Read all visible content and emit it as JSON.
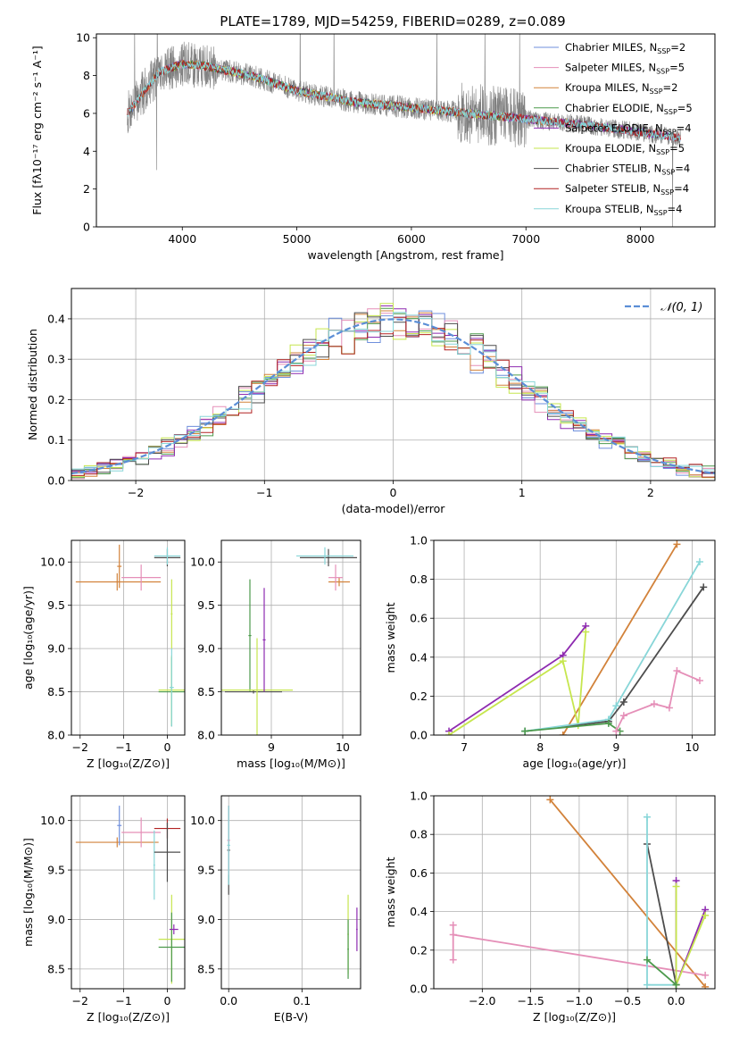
{
  "title": "PLATE=1789, MJD=54259, FIBERID=0289, z=0.089",
  "colors": {
    "Chabrier MILES": "#6f8fdc",
    "Salpeter MILES": "#e58fb8",
    "Kroupa MILES": "#d2823a",
    "Chabrier ELODIE": "#4c9a4c",
    "Salpeter ELODIE": "#8e2bb0",
    "Kroupa ELODIE": "#c6e64e",
    "Chabrier STELIB": "#4d4d4d",
    "Salpeter STELIB": "#b22222",
    "Kroupa STELIB": "#88d6d8",
    "data": "#808080",
    "normal": "#5b8ed6",
    "grid": "#b0b0b0"
  },
  "chart_data": [
    {
      "id": "spectrum",
      "type": "line",
      "xlabel": "wavelength [Angstrom, rest frame]",
      "ylabel": "Flux [fλ10⁻¹⁷ erg cm⁻² s⁻¹ A⁻¹]",
      "xlim": [
        3250,
        8650
      ],
      "ylim": [
        0,
        10.2
      ],
      "xticks": [
        4000,
        5000,
        6000,
        7000,
        8000
      ],
      "yticks": [
        0,
        2,
        4,
        6,
        8,
        10
      ],
      "grid": false,
      "legend_position": "top-right",
      "data_range": [
        3520,
        8350
      ],
      "continuum": [
        [
          3520,
          6.0
        ],
        [
          3800,
          8.2
        ],
        [
          4000,
          8.6
        ],
        [
          4200,
          8.5
        ],
        [
          4600,
          8.0
        ],
        [
          5000,
          7.2
        ],
        [
          5500,
          6.6
        ],
        [
          6000,
          6.3
        ],
        [
          6500,
          6.0
        ],
        [
          7000,
          5.7
        ],
        [
          7500,
          5.4
        ],
        [
          8000,
          5.0
        ],
        [
          8350,
          4.7
        ]
      ],
      "legend": [
        {
          "label": "Chabrier MILES, N",
          "sub": "SSP",
          "suffix": "=2"
        },
        {
          "label": "Salpeter MILES, N",
          "sub": "SSP",
          "suffix": "=5"
        },
        {
          "label": "Kroupa MILES, N",
          "sub": "SSP",
          "suffix": "=2"
        },
        {
          "label": "Chabrier ELODIE, N",
          "sub": "SSP",
          "suffix": "=5"
        },
        {
          "label": "Salpeter ELODIE, N",
          "sub": "SSP",
          "suffix": "=4"
        },
        {
          "label": "Kroupa ELODIE, N",
          "sub": "SSP",
          "suffix": "=5"
        },
        {
          "label": "Chabrier STELIB, N",
          "sub": "SSP",
          "suffix": "=4"
        },
        {
          "label": "Salpeter STELIB, N",
          "sub": "SSP",
          "suffix": "=4"
        },
        {
          "label": "Kroupa STELIB, N",
          "sub": "SSP",
          "suffix": "=4"
        }
      ],
      "model_ranges": {
        "Chabrier MILES": [
          3540,
          7400
        ],
        "Salpeter MILES": [
          3540,
          7400
        ],
        "Kroupa MILES": [
          3540,
          7400
        ],
        "Chabrier ELODIE": [
          3900,
          6800
        ],
        "Salpeter ELODIE": [
          3900,
          8350
        ],
        "Kroupa ELODIE": [
          3900,
          6800
        ],
        "Chabrier STELIB": [
          3520,
          8350
        ],
        "Salpeter STELIB": [
          3520,
          8350
        ],
        "Kroupa STELIB": [
          3520,
          8350
        ]
      }
    },
    {
      "id": "residuals",
      "type": "histogram",
      "xlabel": "(data-model)/error",
      "ylabel": "Normed distribution",
      "xlim": [
        -2.5,
        2.5
      ],
      "ylim": [
        0,
        0.475
      ],
      "xticks": [
        -2,
        -1,
        0,
        1,
        2
      ],
      "yticks": [
        0.0,
        0.1,
        0.2,
        0.3,
        0.4
      ],
      "grid": true,
      "legend": "𝒩(0, 1)",
      "legend_position": "top-right",
      "bins": [
        -2.5,
        2.5,
        50
      ]
    },
    {
      "id": "age-vs-Z",
      "type": "errorbar",
      "xlabel": "Z [log₁₀(Z/Z⊙)]",
      "ylabel": "age  [log₁₀(age/yr)]",
      "xlim": [
        -2.2,
        0.4
      ],
      "ylim": [
        8.0,
        10.25
      ],
      "xticks": [
        -2,
        -1,
        0
      ],
      "yticks": [
        8.0,
        8.5,
        9.0,
        9.5,
        10.0
      ],
      "grid": true,
      "points": [
        {
          "model": "Kroupa MILES",
          "x": -1.15,
          "xerr": [
            0.95,
            1.0
          ],
          "y": 9.77,
          "yerr": 0.1
        },
        {
          "model": "Kroupa MILES",
          "x": -1.1,
          "xerr": 0.05,
          "y": 9.95,
          "yerr": 0.25
        },
        {
          "model": "Salpeter MILES",
          "x": -0.6,
          "xerr": 0.45,
          "y": 9.82,
          "yerr": 0.15
        },
        {
          "model": "Chabrier STELIB",
          "x": 0.0,
          "xerr": 0.3,
          "y": 10.05,
          "yerr": 0.1
        },
        {
          "model": "Kroupa STELIB",
          "x": 0.0,
          "xerr": 0.3,
          "y": 10.07,
          "yerr": 0.1
        },
        {
          "model": "Kroupa ELODIE",
          "x": 0.1,
          "xerr": 0.02,
          "y": 9.4,
          "yerr": 0.4
        },
        {
          "model": "Chabrier ELODIE",
          "x": 0.1,
          "xerr": 0.3,
          "y": 8.5,
          "yerr": 0.4
        },
        {
          "model": "Kroupa ELODIE",
          "x": 0.1,
          "xerr": 0.3,
          "y": 8.52,
          "yerr": 0.4
        },
        {
          "model": "Kroupa STELIB",
          "x": 0.1,
          "xerr": 0.05,
          "y": 8.55,
          "yerr": 0.45
        }
      ]
    },
    {
      "id": "age-vs-mass",
      "type": "errorbar",
      "xlabel": "mass [log₁₀(M/M⊙)]",
      "ylabel": "",
      "xlim": [
        8.3,
        10.25
      ],
      "ylim": [
        8.0,
        10.25
      ],
      "xticks": [
        9,
        10
      ],
      "yticks": [
        8.0,
        8.5,
        9.0,
        9.5,
        10.0
      ],
      "grid": true,
      "points": [
        {
          "model": "Chabrier STELIB",
          "x": 9.8,
          "xerr": 0.4,
          "y": 10.05,
          "yerr": 0.1
        },
        {
          "model": "Kroupa STELIB",
          "x": 9.75,
          "xerr": 0.4,
          "y": 10.07,
          "yerr": 0.1
        },
        {
          "model": "Kroupa MILES",
          "x": 9.95,
          "xerr": 0.15,
          "y": 9.77,
          "yerr": 0.05
        },
        {
          "model": "Salpeter MILES",
          "x": 9.9,
          "xerr": 0.1,
          "y": 9.82,
          "yerr": 0.15
        },
        {
          "model": "Chabrier STELIB",
          "x": 8.75,
          "xerr": 0.4,
          "y": 8.5,
          "yerr": 0.02
        },
        {
          "model": "Chabrier ELODIE",
          "x": 8.7,
          "xerr": 0.02,
          "y": 9.15,
          "yerr": 0.65
        },
        {
          "model": "Kroupa ELODIE",
          "x": 8.8,
          "xerr": 0.5,
          "y": 8.52,
          "yerr": 0.6
        },
        {
          "model": "Salpeter ELODIE",
          "x": 8.9,
          "xerr": 0.02,
          "y": 9.1,
          "yerr": 0.6
        }
      ]
    },
    {
      "id": "weight-vs-age",
      "type": "line",
      "xlabel": "age  [log₁₀(age/yr)]",
      "ylabel": "mass weight",
      "xlim": [
        6.6,
        10.3
      ],
      "ylim": [
        0.0,
        1.0
      ],
      "xticks": [
        7,
        8,
        9,
        10
      ],
      "yticks": [
        0.0,
        0.2,
        0.4,
        0.6,
        0.8,
        1.0
      ],
      "grid": true,
      "series": [
        {
          "model": "Kroupa MILES",
          "x": [
            8.3,
            9.8
          ],
          "y": [
            0.0,
            0.98
          ]
        },
        {
          "model": "Salpeter ELODIE",
          "x": [
            6.8,
            8.3,
            8.6
          ],
          "y": [
            0.02,
            0.41,
            0.56
          ]
        },
        {
          "model": "Kroupa ELODIE",
          "x": [
            6.8,
            8.3,
            8.5,
            8.6
          ],
          "y": [
            0.0,
            0.38,
            0.05,
            0.53
          ]
        },
        {
          "model": "Chabrier STELIB",
          "x": [
            7.8,
            8.9,
            9.1,
            10.15
          ],
          "y": [
            0.02,
            0.07,
            0.17,
            0.76
          ]
        },
        {
          "model": "Kroupa STELIB",
          "x": [
            7.8,
            8.9,
            9.0,
            10.1
          ],
          "y": [
            0.02,
            0.08,
            0.15,
            0.89
          ]
        },
        {
          "model": "Chabrier ELODIE",
          "x": [
            7.8,
            8.9,
            9.05
          ],
          "y": [
            0.02,
            0.06,
            0.02
          ]
        },
        {
          "model": "Salpeter MILES",
          "x": [
            9.0,
            9.1,
            9.5,
            9.7,
            9.8,
            10.1
          ],
          "y": [
            0.02,
            0.1,
            0.16,
            0.14,
            0.33,
            0.28
          ]
        }
      ]
    },
    {
      "id": "mass-vs-Z",
      "type": "errorbar",
      "xlabel": "Z [log₁₀(Z/Z⊙)]",
      "ylabel": "mass [log₁₀(M/M⊙)]",
      "xlim": [
        -2.2,
        0.4
      ],
      "ylim": [
        8.3,
        10.25
      ],
      "xticks": [
        -2,
        -1,
        0
      ],
      "yticks": [
        8.5,
        9.0,
        9.5,
        10.0
      ],
      "grid": true,
      "points": [
        {
          "model": "Kroupa MILES",
          "x": -1.15,
          "xerr": [
            0.95,
            0.95
          ],
          "y": 9.78,
          "yerr": 0.05
        },
        {
          "model": "Chabrier MILES",
          "x": -1.1,
          "xerr": 0.05,
          "y": 9.95,
          "yerr": 0.2
        },
        {
          "model": "Salpeter MILES",
          "x": -0.6,
          "xerr": 0.45,
          "y": 9.88,
          "yerr": 0.15
        },
        {
          "model": "Salpeter STELIB",
          "x": 0.0,
          "xerr": 0.3,
          "y": 9.92,
          "yerr": 0.1
        },
        {
          "model": "Kroupa STELIB",
          "x": -0.3,
          "xerr": 0.02,
          "y": 9.55,
          "yerr": 0.35
        },
        {
          "model": "Chabrier STELIB",
          "x": 0.0,
          "xerr": 0.3,
          "y": 9.68,
          "yerr": 0.3
        },
        {
          "model": "Kroupa ELODIE",
          "x": 0.1,
          "xerr": 0.3,
          "y": 8.8,
          "yerr": 0.45
        },
        {
          "model": "Chabrier ELODIE",
          "x": 0.1,
          "xerr": 0.3,
          "y": 8.72,
          "yerr": 0.35
        },
        {
          "model": "Salpeter ELODIE",
          "x": 0.15,
          "xerr": 0.1,
          "y": 8.9,
          "yerr": 0.05
        }
      ]
    },
    {
      "id": "mass-vs-EBV",
      "type": "errorbar",
      "xlabel": "E(B-V)",
      "ylabel": "",
      "xlim": [
        -0.01,
        0.18
      ],
      "ylim": [
        8.3,
        10.25
      ],
      "xticks": [
        0.0,
        0.1
      ],
      "yticks": [
        8.5,
        9.0,
        9.5,
        10.0
      ],
      "grid": true,
      "points": [
        {
          "model": "Chabrier STELIB",
          "x": 0.0,
          "xerr": 0.002,
          "y": 9.7,
          "yerr": 0.45
        },
        {
          "model": "Salpeter MILES",
          "x": 0.0,
          "xerr": 0.002,
          "y": 9.8,
          "yerr": 0.35
        },
        {
          "model": "Kroupa STELIB",
          "x": 0.0,
          "xerr": 0.002,
          "y": 9.75,
          "yerr": 0.4
        },
        {
          "model": "Kroupa ELODIE",
          "x": 0.163,
          "xerr": 0.001,
          "y": 8.85,
          "yerr": 0.4
        },
        {
          "model": "Chabrier ELODIE",
          "x": 0.163,
          "xerr": 0.001,
          "y": 8.7,
          "yerr": 0.3
        },
        {
          "model": "Salpeter ELODIE",
          "x": 0.175,
          "xerr": 0.001,
          "y": 8.9,
          "yerr": 0.22
        }
      ]
    },
    {
      "id": "weight-vs-Z",
      "type": "line",
      "xlabel": "Z [log₁₀(Z/Z⊙)]",
      "ylabel": "mass weight",
      "xlim": [
        -2.5,
        0.4
      ],
      "ylim": [
        0.0,
        1.0
      ],
      "xticks": [
        -2.0,
        -1.5,
        -1.0,
        -0.5,
        0.0
      ],
      "yticks": [
        0.0,
        0.2,
        0.4,
        0.6,
        0.8,
        1.0
      ],
      "grid": true,
      "series": [
        {
          "model": "Kroupa MILES",
          "x": [
            -1.3,
            0.3
          ],
          "y": [
            0.98,
            0.01
          ]
        },
        {
          "model": "Salpeter MILES",
          "x": [
            -2.3,
            -2.3,
            -2.3,
            0.3
          ],
          "y": [
            0.33,
            0.15,
            0.28,
            0.07
          ]
        },
        {
          "model": "Chabrier STELIB",
          "x": [
            -0.3,
            0.0,
            0.0
          ],
          "y": [
            0.75,
            0.02,
            0.02
          ]
        },
        {
          "model": "Kroupa STELIB",
          "x": [
            -0.3,
            -0.3,
            0.0
          ],
          "y": [
            0.89,
            0.02,
            0.02
          ]
        },
        {
          "model": "Salpeter ELODIE",
          "x": [
            0.0,
            0.0,
            0.3
          ],
          "y": [
            0.56,
            0.02,
            0.41
          ]
        },
        {
          "model": "Kroupa ELODIE",
          "x": [
            0.0,
            0.0,
            0.3
          ],
          "y": [
            0.53,
            0.02,
            0.38
          ]
        },
        {
          "model": "Chabrier ELODIE",
          "x": [
            -0.3,
            0.0
          ],
          "y": [
            0.15,
            0.02
          ]
        }
      ]
    }
  ]
}
